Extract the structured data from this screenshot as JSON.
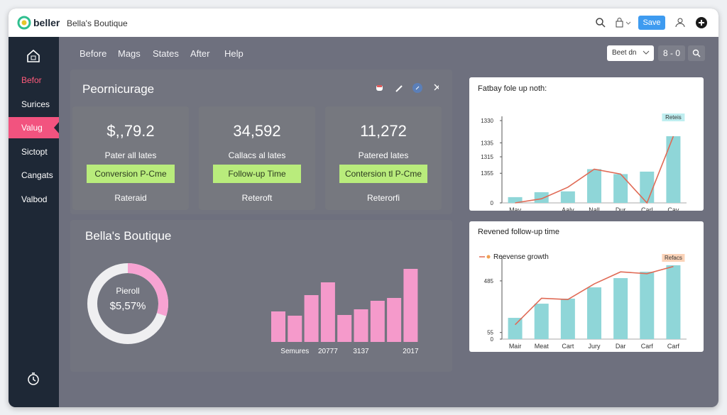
{
  "header": {
    "logo": "beller",
    "shop": "Bella's Boutique",
    "save": "Save"
  },
  "nav": [
    "Before",
    "Mags",
    "States",
    "After",
    "Help"
  ],
  "sidebar": {
    "items": [
      "Befor",
      "Surices",
      "Valug",
      "Sictopt",
      "Cangats",
      "Valbod"
    ],
    "active": 2
  },
  "toolbar": {
    "select": "Beet dn",
    "pager": "8 - 0"
  },
  "kpi": {
    "title": "Peornicurage",
    "cards": [
      {
        "value": "$,,79.2",
        "label": "Pater all lates",
        "badge": "Conversion P-Cme",
        "foot": "Rateraid"
      },
      {
        "value": "34,592",
        "label": "Callacs al lates",
        "badge": "Follow-up Time",
        "foot": "Reteroft"
      },
      {
        "value": "11,272",
        "label": "Patered lates",
        "badge": "Contersion tl P-Cme",
        "foot": "Reterorfi"
      }
    ]
  },
  "donut_panel": {
    "title": "Bella's Boutique",
    "label": "Pieroll",
    "value": "$5,57%",
    "share": 30,
    "color": "#f7a3d2",
    "bars": {
      "color": "#f59acb",
      "categories": [
        null,
        "Semures",
        null,
        "20777",
        null,
        "3137",
        null,
        null,
        "2017"
      ],
      "values": [
        43,
        37,
        66,
        84,
        38,
        46,
        58,
        62,
        103
      ]
    }
  },
  "chart1": {
    "title": "Fatbay fole up noth:",
    "annotation": "Reteis",
    "ylim": [
      0,
      100
    ],
    "yticks": [
      0,
      {
        "value": 36,
        "label": "1355"
      },
      {
        "value": 56,
        "label": "1315"
      },
      {
        "value": 73,
        "label": "1335"
      },
      {
        "value": 100,
        "label": "1330"
      }
    ],
    "categories": [
      "Mav",
      null,
      "Aaly",
      "Nall",
      "Dur",
      "Carl",
      "Cay"
    ],
    "bars": {
      "color": "#8fd6d8",
      "values": [
        7,
        13,
        14,
        41,
        35,
        38,
        81
      ]
    },
    "line": {
      "color": "#e06a55",
      "values": [
        0,
        5,
        19,
        41,
        35,
        0,
        81
      ]
    }
  },
  "chart2": {
    "title": "Revened follow-up time",
    "annotation": "Refacs",
    "ylim": [
      0,
      650
    ],
    "yticks": [
      0,
      55,
      485
    ],
    "categories": [
      "Mair",
      "Meat",
      "Cart",
      "Jury",
      "Dar",
      "Carf",
      "Carf"
    ],
    "bars": {
      "color": "#8fd6d8",
      "values": [
        177,
        295,
        337,
        431,
        508,
        561,
        615
      ]
    },
    "line": {
      "name": "Reevense growth",
      "color": "#e06a55",
      "values": [
        120,
        340,
        330,
        460,
        560,
        545,
        605
      ]
    }
  }
}
